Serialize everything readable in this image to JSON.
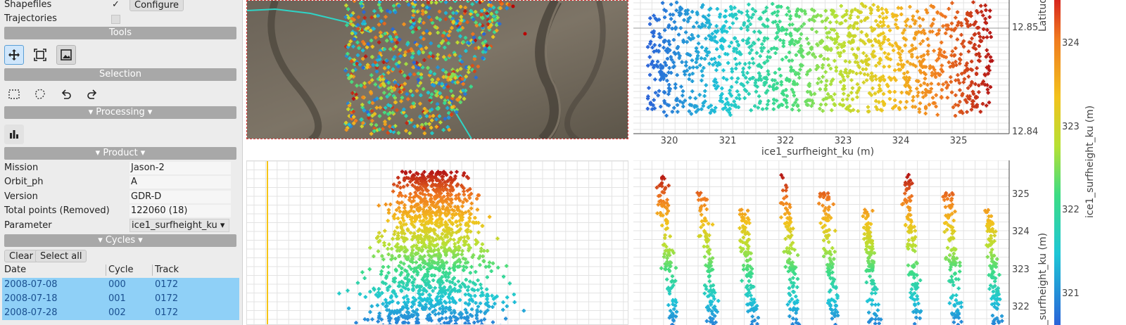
{
  "layers": {
    "shapefiles_label": "Shapefiles",
    "shapefiles_checked": true,
    "configure_label": "Configure",
    "trajectories_label": "Trajectories",
    "trajectories_checked": false
  },
  "sections": {
    "tools": "Tools",
    "selection": "Selection",
    "processing": "▾ Processing ▾",
    "product": "▾ Product ▾",
    "cycles": "▾ Cycles ▾"
  },
  "tools": [
    "move-icon",
    "zoom-extent-icon",
    "image-icon"
  ],
  "selection_tools": [
    "rect-select-icon",
    "lasso-select-icon",
    "undo-icon",
    "redo-icon"
  ],
  "processing_tools": [
    "histogram-icon"
  ],
  "product": {
    "mission_key": "Mission",
    "mission_val": "Jason-2",
    "orbit_key": "Orbit_ph",
    "orbit_val": "A",
    "version_key": "Version",
    "version_val": "GDR-D",
    "points_key": "Total points (Removed)",
    "points_val": "122060 (18)",
    "param_key": "Parameter",
    "param_val": "ice1_surfheight_ku ▾"
  },
  "cycles": {
    "clear_label": "Clear",
    "select_all_label": "Select all",
    "headers": [
      "Date",
      "Cycle",
      "Track"
    ],
    "rows": [
      {
        "date": "2008-07-08",
        "cycle": "000",
        "track": "0172"
      },
      {
        "date": "2008-07-18",
        "cycle": "001",
        "track": "0172"
      },
      {
        "date": "2008-07-28",
        "cycle": "002",
        "track": "0172"
      }
    ]
  },
  "colors": {
    "accent_selected_row": "#8fd0f7",
    "section_bar": "#a8a8a8",
    "track_line": "#2fd4c6",
    "sidebar_bg": "#ececec"
  },
  "charts": {
    "scatter_top": {
      "type": "scatter",
      "xlabel": "ice1_surfheight_ku (m)",
      "ylabel": "Latitude (d",
      "xticks": [
        "320",
        "321",
        "322",
        "323",
        "324",
        "325"
      ],
      "yticks": [
        "12.85",
        "12.84"
      ]
    },
    "bottom_right": {
      "type": "scatter",
      "ylabel": "_surfheight_ku (m)",
      "yticks": [
        "325",
        "324",
        "323",
        "322"
      ]
    },
    "colorbar": {
      "label": "ice1_surfheight_ku (m)",
      "ticks": [
        "324",
        "323",
        "322",
        "321"
      ]
    }
  }
}
